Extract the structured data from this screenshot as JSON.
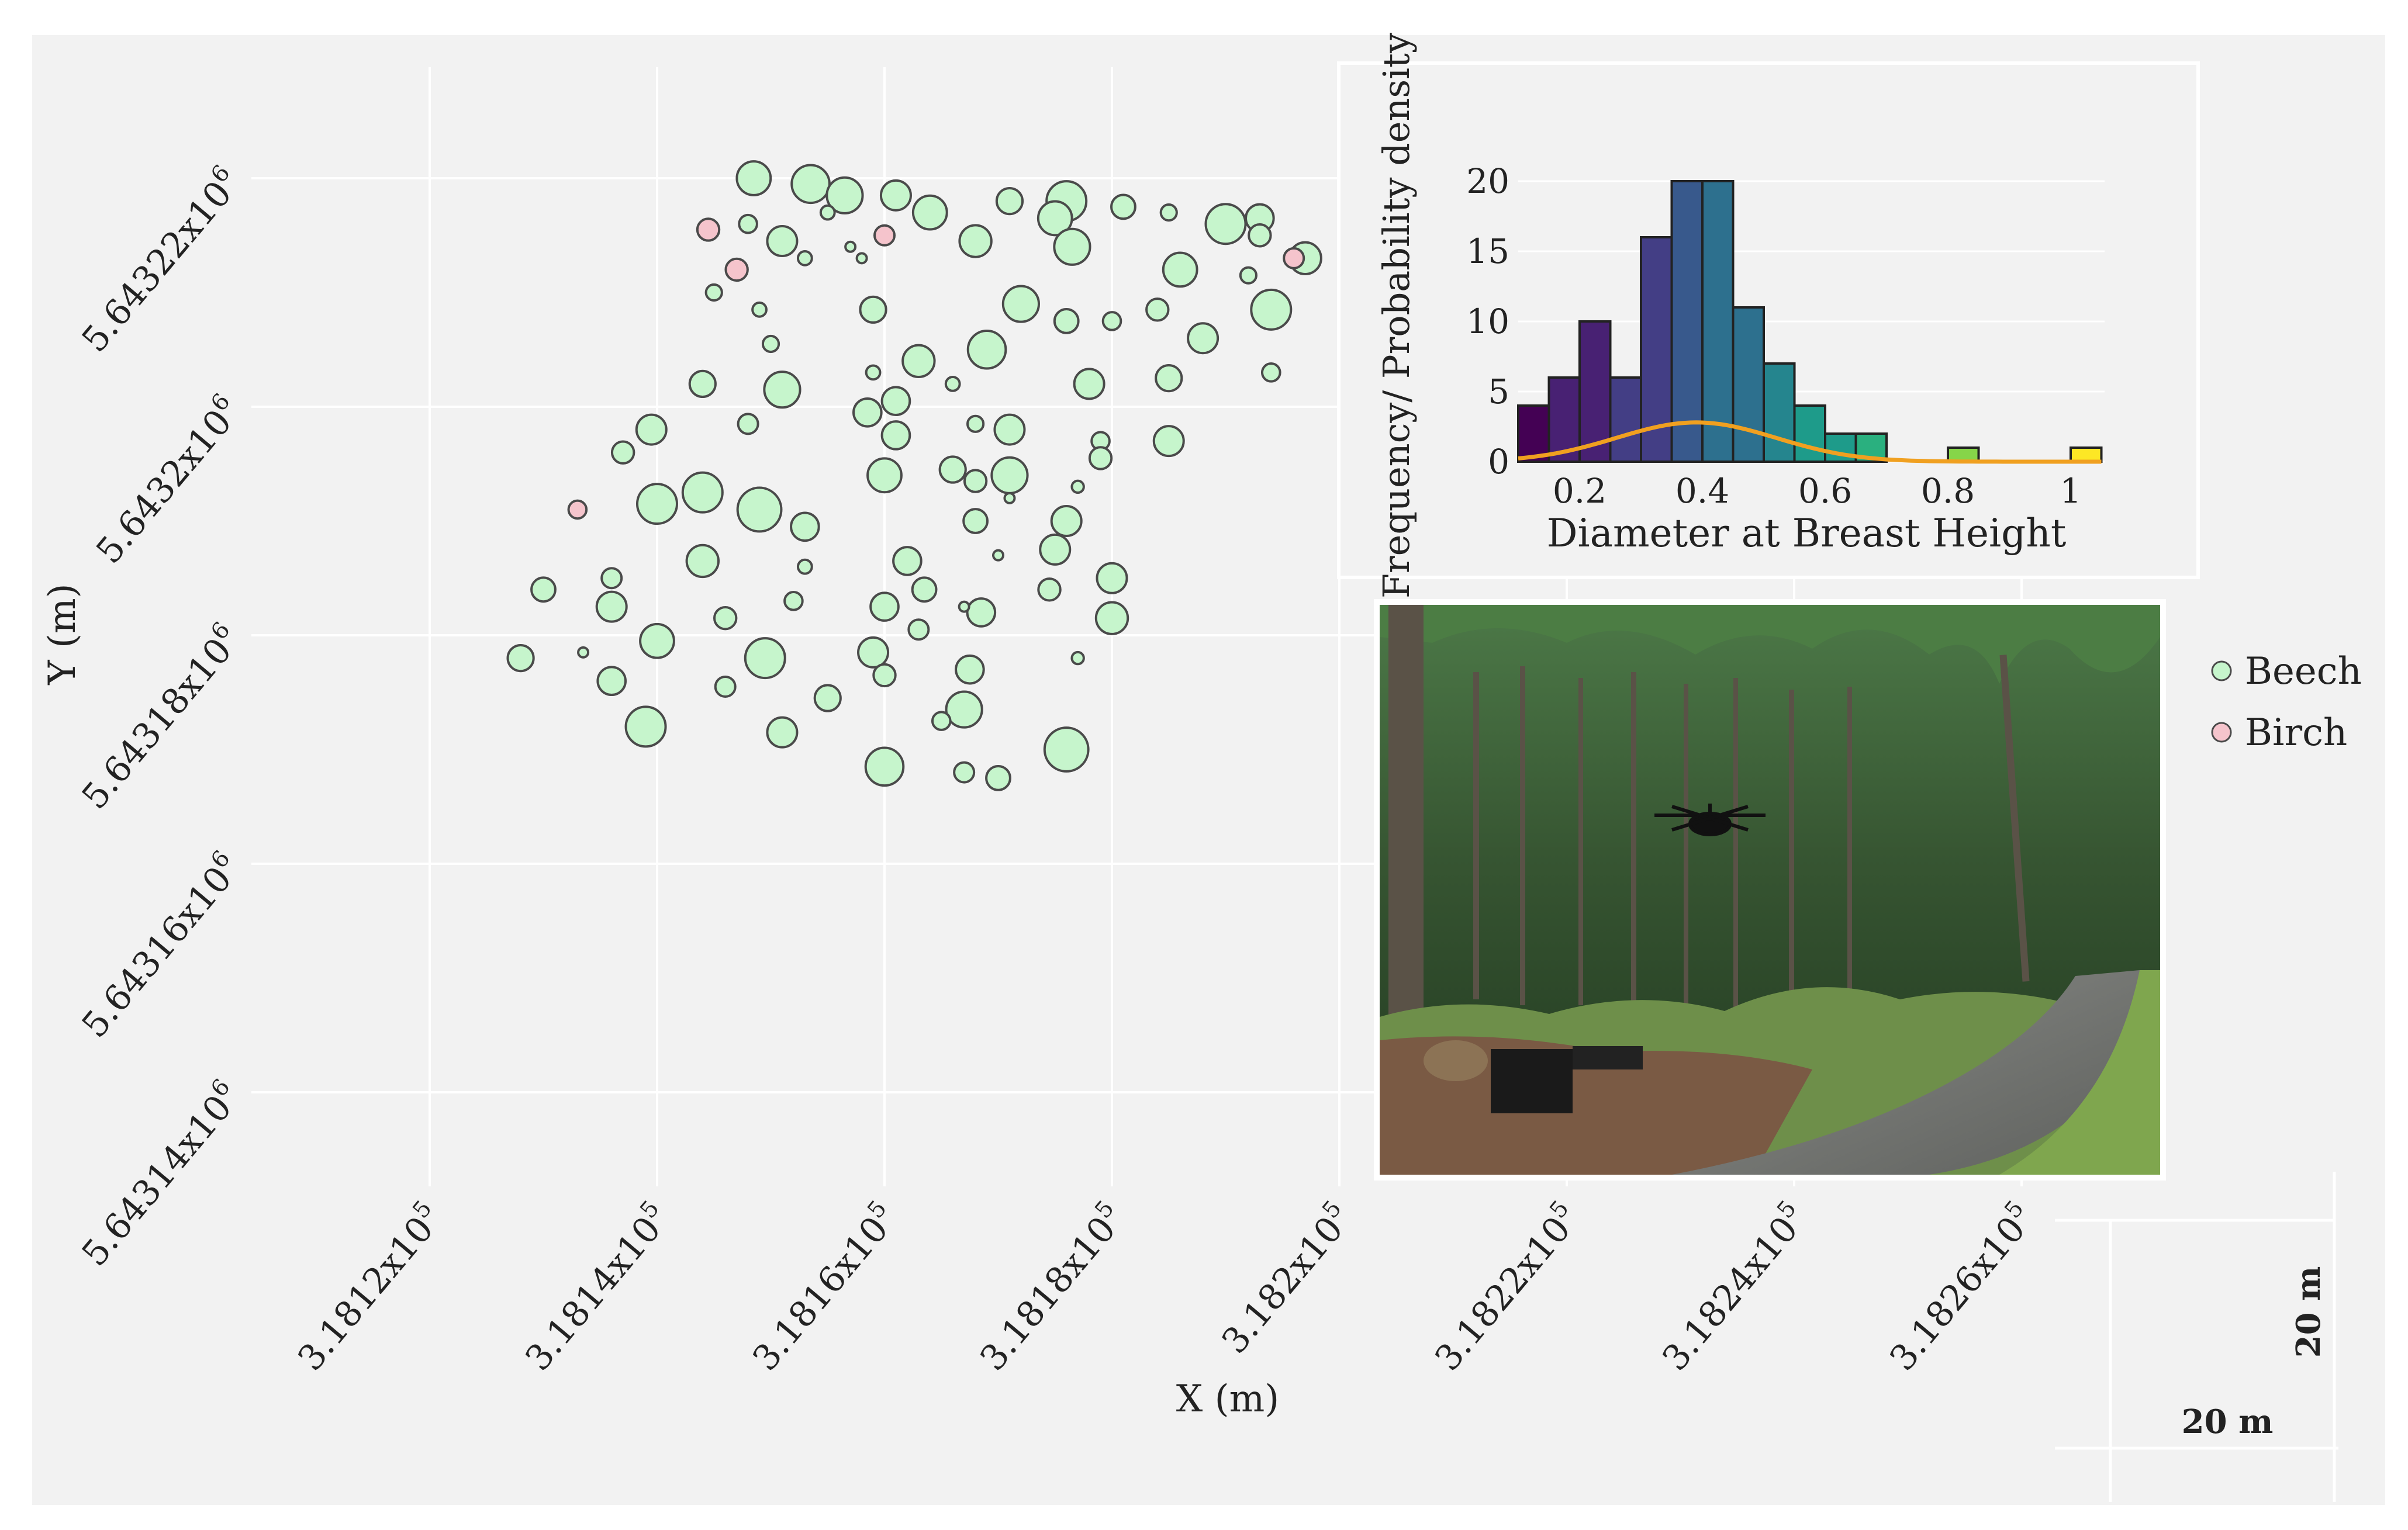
{
  "colors": {
    "background": "#f2f2f2",
    "grid": "#ffffff",
    "beech_fill": "#c6f5cc",
    "birch_fill": "#f5c4cc",
    "marker_stroke": "#4a4a4a",
    "density_line": "#f0a020",
    "viridis": [
      "#440154",
      "#482173",
      "#433e85",
      "#38598c",
      "#2d708e",
      "#25858e",
      "#1e9b8a",
      "#2ab07f",
      "#52c569",
      "#86d549",
      "#c2df23",
      "#fde725"
    ]
  },
  "chart_data": [
    {
      "type": "scatter",
      "title": "",
      "xlabel": "X (m)",
      "ylabel": "Y (m)",
      "xlim": [
        318104,
        318284
      ],
      "ylim": [
        5643131,
        5643234
      ],
      "x_ticks": [
        318120,
        318140,
        318160,
        318180,
        318200,
        318220,
        318240,
        318260
      ],
      "x_tick_labels": [
        "3.1812x10^5",
        "3.1814x10^5",
        "3.1816x10^5",
        "3.1818x10^5",
        "3.182x10^5",
        "3.1822x10^5",
        "3.1824x10^5",
        "3.1826x10^5"
      ],
      "y_ticks": [
        5643140,
        5643160,
        5643180,
        5643200,
        5643220
      ],
      "y_tick_labels": [
        "5.64314x10^6",
        "5.64316x10^6",
        "5.64318x10^6",
        "5.6432x10^6",
        "5.64322x10^6"
      ],
      "legend": {
        "position": "right",
        "entries": [
          "Beech",
          "Birch"
        ]
      },
      "series": [
        {
          "name": "Beech",
          "points": [
            {
              "x": 318148.5,
              "y": 5643220,
              "dbh": 0.34
            },
            {
              "x": 318153.5,
              "y": 5643219.5,
              "dbh": 0.38
            },
            {
              "x": 318156.5,
              "y": 5643218.5,
              "dbh": 0.36
            },
            {
              "x": 318161,
              "y": 5643218.5,
              "dbh": 0.3
            },
            {
              "x": 318171,
              "y": 5643218,
              "dbh": 0.26
            },
            {
              "x": 318176,
              "y": 5643218,
              "dbh": 0.4
            },
            {
              "x": 318181,
              "y": 5643217.5,
              "dbh": 0.24
            },
            {
              "x": 318185,
              "y": 5643217,
              "dbh": 0.16
            },
            {
              "x": 318190,
              "y": 5643216,
              "dbh": 0.4
            },
            {
              "x": 318193,
              "y": 5643216.5,
              "dbh": 0.28
            },
            {
              "x": 318193,
              "y": 5643215,
              "dbh": 0.22
            },
            {
              "x": 318155,
              "y": 5643217,
              "dbh": 0.14
            },
            {
              "x": 318164,
              "y": 5643217,
              "dbh": 0.34
            },
            {
              "x": 318175,
              "y": 5643216.5,
              "dbh": 0.34
            },
            {
              "x": 318148,
              "y": 5643216,
              "dbh": 0.18
            },
            {
              "x": 318151,
              "y": 5643214.5,
              "dbh": 0.3
            },
            {
              "x": 318157,
              "y": 5643214,
              "dbh": 0.1
            },
            {
              "x": 318168,
              "y": 5643214.5,
              "dbh": 0.32
            },
            {
              "x": 318176.5,
              "y": 5643214,
              "dbh": 0.36
            },
            {
              "x": 318197,
              "y": 5643213,
              "dbh": 0.32
            },
            {
              "x": 318153,
              "y": 5643213,
              "dbh": 0.14
            },
            {
              "x": 318158,
              "y": 5643213,
              "dbh": 0.1
            },
            {
              "x": 318186,
              "y": 5643212,
              "dbh": 0.34
            },
            {
              "x": 318192,
              "y": 5643211.5,
              "dbh": 0.16
            },
            {
              "x": 318145,
              "y": 5643210,
              "dbh": 0.16
            },
            {
              "x": 318149,
              "y": 5643208.5,
              "dbh": 0.14
            },
            {
              "x": 318159,
              "y": 5643208.5,
              "dbh": 0.26
            },
            {
              "x": 318172,
              "y": 5643209,
              "dbh": 0.36
            },
            {
              "x": 318176,
              "y": 5643207.5,
              "dbh": 0.24
            },
            {
              "x": 318180,
              "y": 5643207.5,
              "dbh": 0.18
            },
            {
              "x": 318184,
              "y": 5643208.5,
              "dbh": 0.22
            },
            {
              "x": 318194,
              "y": 5643208.5,
              "dbh": 0.4
            },
            {
              "x": 318150,
              "y": 5643205.5,
              "dbh": 0.16
            },
            {
              "x": 318163,
              "y": 5643204,
              "dbh": 0.32
            },
            {
              "x": 318169,
              "y": 5643205,
              "dbh": 0.38
            },
            {
              "x": 318188,
              "y": 5643206,
              "dbh": 0.3
            },
            {
              "x": 318159,
              "y": 5643203,
              "dbh": 0.14
            },
            {
              "x": 318144,
              "y": 5643202,
              "dbh": 0.26
            },
            {
              "x": 318151,
              "y": 5643201.5,
              "dbh": 0.36
            },
            {
              "x": 318166,
              "y": 5643202,
              "dbh": 0.14
            },
            {
              "x": 318178,
              "y": 5643202,
              "dbh": 0.3
            },
            {
              "x": 318185,
              "y": 5643202.5,
              "dbh": 0.26
            },
            {
              "x": 318194,
              "y": 5643203,
              "dbh": 0.18
            },
            {
              "x": 318161,
              "y": 5643200.5,
              "dbh": 0.28
            },
            {
              "x": 318158.5,
              "y": 5643199.5,
              "dbh": 0.28
            },
            {
              "x": 318148,
              "y": 5643198.5,
              "dbh": 0.2
            },
            {
              "x": 318168,
              "y": 5643198.5,
              "dbh": 0.16
            },
            {
              "x": 318171,
              "y": 5643198,
              "dbh": 0.3
            },
            {
              "x": 318139.5,
              "y": 5643198,
              "dbh": 0.3
            },
            {
              "x": 318161,
              "y": 5643197.5,
              "dbh": 0.28
            },
            {
              "x": 318179,
              "y": 5643197,
              "dbh": 0.18
            },
            {
              "x": 318185,
              "y": 5643197,
              "dbh": 0.3
            },
            {
              "x": 318137,
              "y": 5643196,
              "dbh": 0.22
            },
            {
              "x": 318179,
              "y": 5643195.5,
              "dbh": 0.22
            },
            {
              "x": 318166,
              "y": 5643194.5,
              "dbh": 0.26
            },
            {
              "x": 318160,
              "y": 5643194,
              "dbh": 0.34
            },
            {
              "x": 318171,
              "y": 5643194,
              "dbh": 0.36
            },
            {
              "x": 318168,
              "y": 5643193.5,
              "dbh": 0.22
            },
            {
              "x": 318177,
              "y": 5643193,
              "dbh": 0.12
            },
            {
              "x": 318144,
              "y": 5643192.5,
              "dbh": 0.4
            },
            {
              "x": 318140,
              "y": 5643191.5,
              "dbh": 0.4
            },
            {
              "x": 318149,
              "y": 5643191,
              "dbh": 0.44
            },
            {
              "x": 318171,
              "y": 5643192,
              "dbh": 0.1
            },
            {
              "x": 318168,
              "y": 5643190,
              "dbh": 0.24
            },
            {
              "x": 318176,
              "y": 5643190,
              "dbh": 0.3
            },
            {
              "x": 318153,
              "y": 5643189.5,
              "dbh": 0.28
            },
            {
              "x": 318175,
              "y": 5643187.5,
              "dbh": 0.3
            },
            {
              "x": 318144,
              "y": 5643186.5,
              "dbh": 0.32
            },
            {
              "x": 318162,
              "y": 5643186.5,
              "dbh": 0.28
            },
            {
              "x": 318170,
              "y": 5643187,
              "dbh": 0.1
            },
            {
              "x": 318153,
              "y": 5643186,
              "dbh": 0.14
            },
            {
              "x": 318136,
              "y": 5643185,
              "dbh": 0.2
            },
            {
              "x": 318180,
              "y": 5643185,
              "dbh": 0.3
            },
            {
              "x": 318130,
              "y": 5643184,
              "dbh": 0.24
            },
            {
              "x": 318163.5,
              "y": 5643184,
              "dbh": 0.24
            },
            {
              "x": 318174.5,
              "y": 5643184,
              "dbh": 0.22
            },
            {
              "x": 318152,
              "y": 5643183,
              "dbh": 0.18
            },
            {
              "x": 318136,
              "y": 5643182.5,
              "dbh": 0.3
            },
            {
              "x": 318160,
              "y": 5643182.5,
              "dbh": 0.28
            },
            {
              "x": 318168.5,
              "y": 5643182,
              "dbh": 0.28
            },
            {
              "x": 318146,
              "y": 5643181.5,
              "dbh": 0.22
            },
            {
              "x": 318180,
              "y": 5643181.5,
              "dbh": 0.32
            },
            {
              "x": 318167,
              "y": 5643182.5,
              "dbh": 0.1
            },
            {
              "x": 318163,
              "y": 5643180.5,
              "dbh": 0.2
            },
            {
              "x": 318140,
              "y": 5643179.5,
              "dbh": 0.34
            },
            {
              "x": 318159,
              "y": 5643178.5,
              "dbh": 0.3
            },
            {
              "x": 318128,
              "y": 5643178,
              "dbh": 0.26
            },
            {
              "x": 318149.5,
              "y": 5643178,
              "dbh": 0.4
            },
            {
              "x": 318133.5,
              "y": 5643178.5,
              "dbh": 0.1
            },
            {
              "x": 318177,
              "y": 5643178,
              "dbh": 0.12
            },
            {
              "x": 318167.5,
              "y": 5643177,
              "dbh": 0.28
            },
            {
              "x": 318160,
              "y": 5643176.5,
              "dbh": 0.22
            },
            {
              "x": 318136,
              "y": 5643176,
              "dbh": 0.28
            },
            {
              "x": 318146,
              "y": 5643175.5,
              "dbh": 0.2
            },
            {
              "x": 318155,
              "y": 5643174.5,
              "dbh": 0.26
            },
            {
              "x": 318167,
              "y": 5643173.5,
              "dbh": 0.36
            },
            {
              "x": 318165,
              "y": 5643172.5,
              "dbh": 0.18
            },
            {
              "x": 318139,
              "y": 5643172,
              "dbh": 0.4
            },
            {
              "x": 318151,
              "y": 5643171.5,
              "dbh": 0.3
            },
            {
              "x": 318176,
              "y": 5643170,
              "dbh": 0.44
            },
            {
              "x": 318160,
              "y": 5643168.5,
              "dbh": 0.38
            },
            {
              "x": 318167,
              "y": 5643168,
              "dbh": 0.2
            },
            {
              "x": 318170,
              "y": 5643167.5,
              "dbh": 0.24
            }
          ]
        },
        {
          "name": "Birch",
          "points": [
            {
              "x": 318144.5,
              "y": 5643215.5,
              "dbh": 0.22
            },
            {
              "x": 318160,
              "y": 5643215,
              "dbh": 0.2
            },
            {
              "x": 318147,
              "y": 5643212,
              "dbh": 0.22
            },
            {
              "x": 318196,
              "y": 5643213,
              "dbh": 0.2
            },
            {
              "x": 318133,
              "y": 5643191,
              "dbh": 0.18
            }
          ]
        }
      ]
    },
    {
      "type": "bar",
      "title": "",
      "xlabel": "Diameter at Breast Height",
      "ylabel": "Frequency/ Probability density",
      "xlim": [
        0.1,
        1.05
      ],
      "ylim": [
        0,
        23
      ],
      "x_ticks": [
        0.2,
        0.4,
        0.6,
        0.8,
        1
      ],
      "x_tick_labels": [
        "0.2",
        "0.4",
        "0.6",
        "0.8",
        "1"
      ],
      "y_ticks": [
        0,
        5,
        10,
        15,
        20
      ],
      "y_tick_labels": [
        "0",
        "5",
        "10",
        "15",
        "20"
      ],
      "bin_width": 0.05,
      "bins": [
        0.1,
        0.15,
        0.2,
        0.25,
        0.3,
        0.35,
        0.4,
        0.45,
        0.5,
        0.55,
        0.6,
        0.65,
        0.7,
        0.75,
        0.8,
        0.85,
        0.9,
        0.95,
        1.0
      ],
      "values": [
        4,
        6,
        10,
        6,
        16,
        20,
        20,
        11,
        7,
        4,
        2,
        2,
        0,
        0,
        1,
        0,
        0,
        0,
        1
      ],
      "density": {
        "mean": 0.39,
        "sd": 0.13,
        "peak": 2.8
      }
    }
  ],
  "legend_labels": {
    "beech": "Beech",
    "birch": "Birch"
  },
  "scale_bar": {
    "horizontal": "20 m",
    "vertical": "20 m"
  },
  "photo": {
    "caption": ""
  }
}
